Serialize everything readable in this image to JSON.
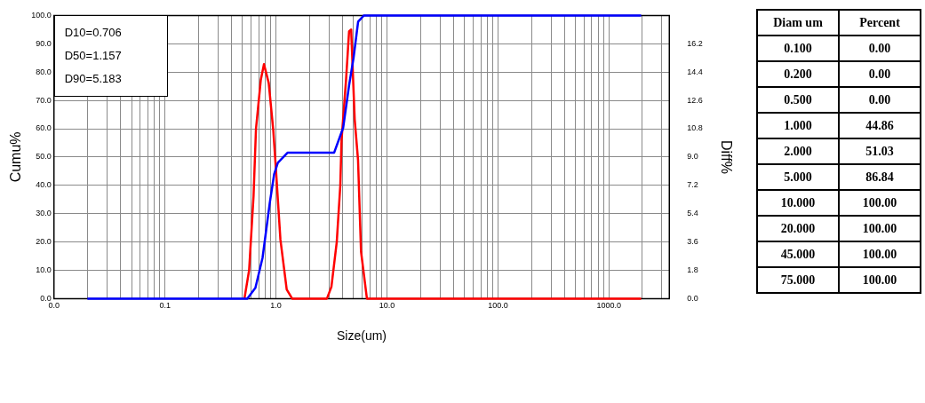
{
  "chart_data": [
    {
      "type": "line",
      "xlabel": "Size(um)",
      "ylabel": "Cumu%",
      "y2label": "Diff%",
      "annotations": [
        "D10=0.706",
        "D50=1.157",
        "D90=5.183"
      ],
      "log": "x",
      "grid": true,
      "legend": false,
      "marker": "none",
      "line_style": "solid",
      "xlim": [
        0.01,
        3500
      ],
      "xticks": [
        {
          "value": 0.01,
          "label": "0.0"
        },
        {
          "value": 0.02,
          "label": null
        },
        {
          "value": 0.03,
          "label": null
        },
        {
          "value": 0.04,
          "label": null
        },
        {
          "value": 0.05,
          "label": null
        },
        {
          "value": 0.06,
          "label": null
        },
        {
          "value": 0.07,
          "label": null
        },
        {
          "value": 0.08,
          "label": null
        },
        {
          "value": 0.09,
          "label": null
        },
        {
          "value": 0.1,
          "label": "0.1"
        },
        {
          "value": 0.2,
          "label": null
        },
        {
          "value": 0.3,
          "label": null
        },
        {
          "value": 0.4,
          "label": null
        },
        {
          "value": 0.5,
          "label": null
        },
        {
          "value": 0.6,
          "label": null
        },
        {
          "value": 0.7,
          "label": null
        },
        {
          "value": 0.8,
          "label": null
        },
        {
          "value": 0.9,
          "label": null
        },
        {
          "value": 1,
          "label": "1.0"
        },
        {
          "value": 2,
          "label": null
        },
        {
          "value": 3,
          "label": null
        },
        {
          "value": 4,
          "label": null
        },
        {
          "value": 5,
          "label": null
        },
        {
          "value": 6,
          "label": null
        },
        {
          "value": 7,
          "label": null
        },
        {
          "value": 8,
          "label": null
        },
        {
          "value": 9,
          "label": null
        },
        {
          "value": 10,
          "label": "10.0"
        },
        {
          "value": 20,
          "label": null
        },
        {
          "value": 30,
          "label": null
        },
        {
          "value": 40,
          "label": null
        },
        {
          "value": 50,
          "label": null
        },
        {
          "value": 60,
          "label": null
        },
        {
          "value": 70,
          "label": null
        },
        {
          "value": 80,
          "label": null
        },
        {
          "value": 90,
          "label": null
        },
        {
          "value": 100,
          "label": "100.0"
        },
        {
          "value": 200,
          "label": null
        },
        {
          "value": 300,
          "label": null
        },
        {
          "value": 400,
          "label": null
        },
        {
          "value": 500,
          "label": null
        },
        {
          "value": 600,
          "label": null
        },
        {
          "value": 700,
          "label": null
        },
        {
          "value": 800,
          "label": null
        },
        {
          "value": 900,
          "label": null
        },
        {
          "value": 1000,
          "label": "1000.0"
        },
        {
          "value": 2000,
          "label": null
        },
        {
          "value": 3000,
          "label": null
        }
      ],
      "ylim": [
        0,
        100
      ],
      "yticks": [
        {
          "value": 0,
          "label": "0.0"
        },
        {
          "value": 10,
          "label": "10.0"
        },
        {
          "value": 20,
          "label": "20.0"
        },
        {
          "value": 30,
          "label": "30.0"
        },
        {
          "value": 40,
          "label": "40.0"
        },
        {
          "value": 50,
          "label": "50.0"
        },
        {
          "value": 60,
          "label": "60.0"
        },
        {
          "value": 70,
          "label": "70.0"
        },
        {
          "value": 80,
          "label": "80.0"
        },
        {
          "value": 90,
          "label": "90.0"
        },
        {
          "value": 100,
          "label": "100.0"
        }
      ],
      "y2lim": [
        0,
        18
      ],
      "y2ticks": [
        {
          "value": 0,
          "label": "0.0"
        },
        1.8,
        3.6,
        5.4,
        7.2,
        {
          "value": 9,
          "label": "9.0"
        },
        10.8,
        12.6,
        14.4,
        16.2
      ],
      "series": [
        {
          "color": "#ff0000",
          "axis": "y2",
          "x": [
            0.52,
            0.573,
            0.628,
            0.661,
            0.73,
            0.78,
            0.861,
            0.946,
            1.0,
            1.097,
            1.25,
            1.4,
            2.88,
            3.16,
            3.53,
            3.8,
            3.9,
            4.28,
            4.56,
            4.76,
            5.12,
            5.49,
            5.84,
            6.6,
            1950
          ],
          "values": [
            0,
            1.8,
            6.5,
            10.8,
            13.9,
            14.9,
            13.7,
            10.7,
            8.2,
            3.75,
            0.58,
            0,
            0,
            0.75,
            3.6,
            7.2,
            10.1,
            13.9,
            17.0,
            17.1,
            11.4,
            8.8,
            3.0,
            0,
            0
          ]
        },
        {
          "color": "#0000ff",
          "x": [
            0.02,
            0.552,
            0.653,
            0.757,
            0.879,
            0.964,
            1.04,
            1.27,
            3.34,
            4.03,
            4.56,
            5.0,
            5.5,
            6.2,
            1950
          ],
          "values": [
            0,
            0,
            3.8,
            14.4,
            33.7,
            44,
            48,
            51.5,
            51.5,
            60.3,
            75.3,
            85,
            97.8,
            100,
            100
          ]
        }
      ]
    },
    {
      "type": "other",
      "xlabel": "Diam um",
      "ylabel": "Percent",
      "data_labels": true,
      "categories": [
        "0.100",
        "0.200",
        "0.500",
        "1.000",
        "2.000",
        "5.000",
        "10.000",
        "20.000",
        "45.000",
        "75.000"
      ],
      "value_labels": [
        "0.00",
        "0.00",
        "0.00",
        "44.86",
        "51.03",
        "86.84",
        "100.00",
        "100.00",
        "100.00",
        "100.00"
      ]
    }
  ]
}
